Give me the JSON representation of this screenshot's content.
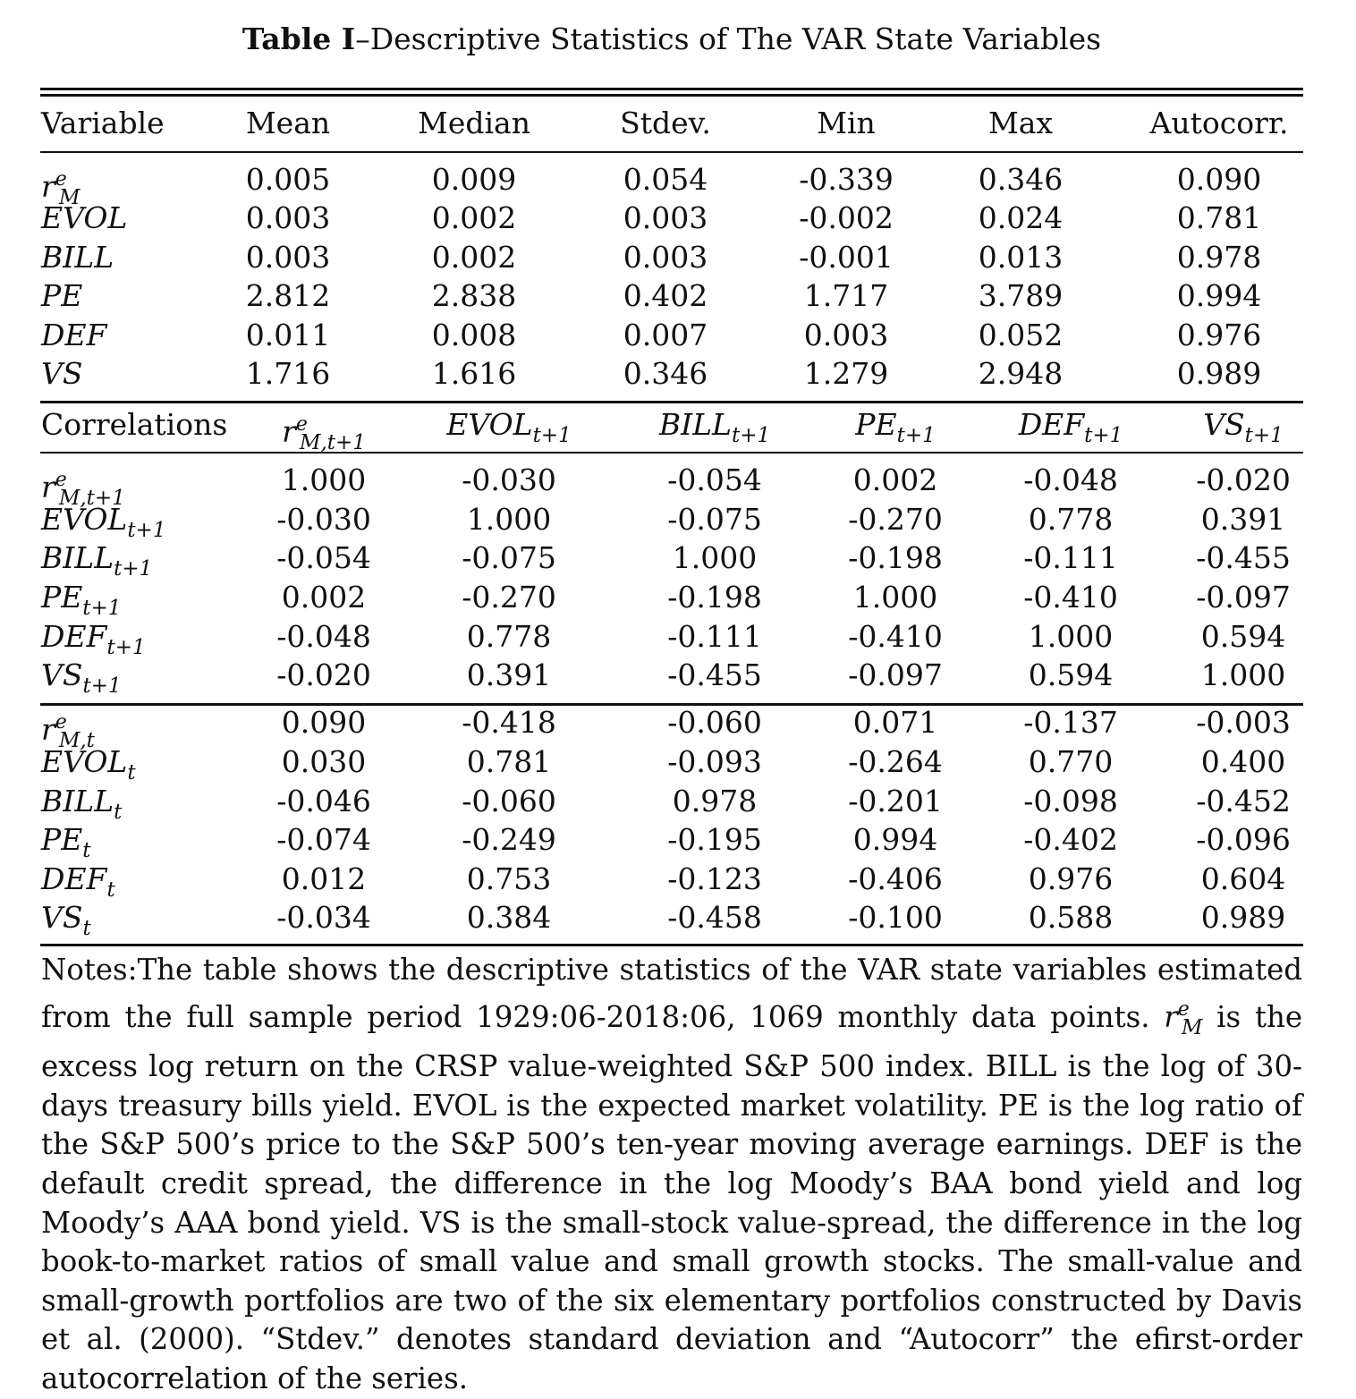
{
  "title": {
    "label": "Table I",
    "text": "–Descriptive Statistics of The VAR State Variables"
  },
  "descriptive": {
    "headers": [
      "Variable",
      "Mean",
      "Median",
      "Stdev.",
      "Min",
      "Max",
      "Autocorr."
    ],
    "rows": [
      {
        "var": "r",
        "var_sup": "e",
        "var_sub": "M",
        "vals": [
          "0.005",
          "0.009",
          "0.054",
          "-0.339",
          "0.346",
          "0.090"
        ]
      },
      {
        "var": "EVOL",
        "vals": [
          "0.003",
          "0.002",
          "0.003",
          "-0.002",
          "0.024",
          "0.781"
        ]
      },
      {
        "var": "BILL",
        "vals": [
          "0.003",
          "0.002",
          "0.003",
          "-0.001",
          "0.013",
          "0.978"
        ]
      },
      {
        "var": "PE",
        "vals": [
          "2.812",
          "2.838",
          "0.402",
          "1.717",
          "3.789",
          "0.994"
        ]
      },
      {
        "var": "DEF",
        "vals": [
          "0.011",
          "0.008",
          "0.007",
          "0.003",
          "0.052",
          "0.976"
        ]
      },
      {
        "var": "VS",
        "vals": [
          "1.716",
          "1.616",
          "0.346",
          "1.279",
          "2.948",
          "0.989"
        ]
      }
    ]
  },
  "correlations": {
    "label": "Correlations",
    "columns": [
      {
        "var": "r",
        "sup": "e",
        "sub": "M,t+1"
      },
      {
        "var": "EVOL",
        "sub": "t+1"
      },
      {
        "var": "BILL",
        "sub": "t+1"
      },
      {
        "var": "PE",
        "sub": "t+1"
      },
      {
        "var": "DEF",
        "sub": "t+1"
      },
      {
        "var": "VS",
        "sub": "t+1"
      }
    ],
    "block1": [
      {
        "var": "r",
        "sup": "e",
        "sub": "M,t+1",
        "vals": [
          "1.000",
          "-0.030",
          "-0.054",
          "0.002",
          "-0.048",
          "-0.020"
        ]
      },
      {
        "var": "EVOL",
        "sub": "t+1",
        "vals": [
          "-0.030",
          "1.000",
          "-0.075",
          "-0.270",
          "0.778",
          "0.391"
        ]
      },
      {
        "var": "BILL",
        "sub": "t+1",
        "vals": [
          "-0.054",
          "-0.075",
          "1.000",
          "-0.198",
          "-0.111",
          "-0.455"
        ]
      },
      {
        "var": "PE",
        "sub": "t+1",
        "vals": [
          "0.002",
          "-0.270",
          "-0.198",
          "1.000",
          "-0.410",
          "-0.097"
        ]
      },
      {
        "var": "DEF",
        "sub": "t+1",
        "vals": [
          "-0.048",
          "0.778",
          "-0.111",
          "-0.410",
          "1.000",
          "0.594"
        ]
      },
      {
        "var": "VS",
        "sub": "t+1",
        "vals": [
          "-0.020",
          "0.391",
          "-0.455",
          "-0.097",
          "0.594",
          "1.000"
        ]
      }
    ],
    "block2": [
      {
        "var": "r",
        "sup": "e",
        "sub": "M,t",
        "vals": [
          "0.090",
          "-0.418",
          "-0.060",
          "0.071",
          "-0.137",
          "-0.003"
        ]
      },
      {
        "var": "EVOL",
        "sub": "t",
        "vals": [
          "0.030",
          "0.781",
          "-0.093",
          "-0.264",
          "0.770",
          "0.400"
        ]
      },
      {
        "var": "BILL",
        "sub": "t",
        "vals": [
          "-0.046",
          "-0.060",
          "0.978",
          "-0.201",
          "-0.098",
          "-0.452"
        ]
      },
      {
        "var": "PE",
        "sub": "t",
        "vals": [
          "-0.074",
          "-0.249",
          "-0.195",
          "0.994",
          "-0.402",
          "-0.096"
        ]
      },
      {
        "var": "DEF",
        "sub": "t",
        "vals": [
          "0.012",
          "0.753",
          "-0.123",
          "-0.406",
          "0.976",
          "0.604"
        ]
      },
      {
        "var": "VS",
        "sub": "t",
        "vals": [
          "-0.034",
          "0.384",
          "-0.458",
          "-0.100",
          "0.588",
          "0.989"
        ]
      }
    ]
  },
  "notes": {
    "part1": "Notes:The table shows the descriptive statistics of the VAR state variables estimated from the full sample period 1929:06-2018:06, 1069 monthly data points. ",
    "sym": "r",
    "sym_sup": "e",
    "sym_sub": "M",
    "part2": " is the excess log return on the CRSP value-weighted S&P 500 index. BILL is the log of 30-days treasury bills yield. EVOL is the expected market volatility. PE is the log ratio of the S&P 500’s price to the S&P 500’s ten-year moving average earnings. DEF is the default credit spread, the difference in the log Moody’s BAA bond yield and log Moody’s AAA bond yield. VS is the small-stock value-spread, the difference in the log book-to-market ratios of small value and small growth stocks. The small-value and small-growth portfolios are two of the six elementary portfolios constructed by Davis et al. (2000). “Stdev.” denotes standard deviation and “Autocorr” the efirst-order autocorrelation of the series."
  }
}
